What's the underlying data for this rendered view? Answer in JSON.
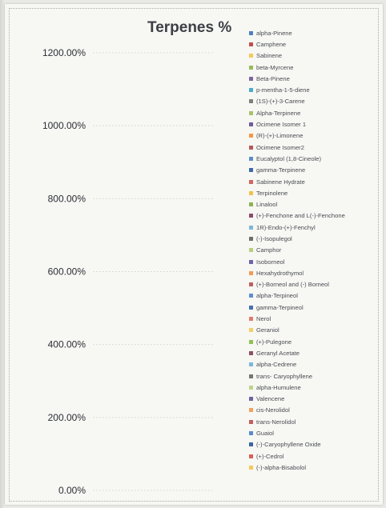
{
  "chart_data": {
    "type": "bar",
    "title": "Terpenes %",
    "xlabel": "",
    "ylabel": "",
    "ylim": [
      0,
      12
    ],
    "yticks": [
      {
        "value": 0,
        "label": "0.00%"
      },
      {
        "value": 2,
        "label": "200.00%"
      },
      {
        "value": 4,
        "label": "400.00%"
      },
      {
        "value": 6,
        "label": "600.00%"
      },
      {
        "value": 8,
        "label": "800.00%"
      },
      {
        "value": 10,
        "label": "1000.00%"
      },
      {
        "value": 12,
        "label": "1200.00%"
      }
    ],
    "legend_position": "right",
    "series": [
      {
        "name": "alpha-Pinene",
        "color": "#4f81bd",
        "values": []
      },
      {
        "name": "Camphene",
        "color": "#c0504d",
        "values": []
      },
      {
        "name": "Sabinene",
        "color": "#f7c85a",
        "values": []
      },
      {
        "name": "beta-Myrcene",
        "color": "#9bbb59",
        "values": []
      },
      {
        "name": "Beta-Pinene",
        "color": "#8064a2",
        "values": []
      },
      {
        "name": "p-mentha-1-5-diene",
        "color": "#4bacc6",
        "values": []
      },
      {
        "name": "(1S)-(+)-3-Carene",
        "color": "#7f7f7f",
        "values": []
      },
      {
        "name": "Alpha-Terpinene",
        "color": "#a5c46b",
        "values": []
      },
      {
        "name": "Ocimene Isomer 1",
        "color": "#6f5c99",
        "values": []
      },
      {
        "name": "(R)-(+)-Limonene",
        "color": "#f79646",
        "values": []
      },
      {
        "name": "Ocimene Isomer2",
        "color": "#b65a57",
        "values": []
      },
      {
        "name": "Eucalyptol (1,8-Cineole)",
        "color": "#5b8ec7",
        "values": []
      },
      {
        "name": "gamma-Terpinene",
        "color": "#3f6aa6",
        "values": []
      },
      {
        "name": "Sabinene Hydrate",
        "color": "#d0675f",
        "values": []
      },
      {
        "name": "Terpinolene",
        "color": "#f2c14e",
        "values": []
      },
      {
        "name": "Linalool",
        "color": "#8db255",
        "values": []
      },
      {
        "name": "(+)-Fenchone and L(-)-Fenchone",
        "color": "#8a4d6e",
        "values": []
      },
      {
        "name": "1R)-Endo-(+)-Fenchyl",
        "color": "#7fb7d8",
        "values": []
      },
      {
        "name": "(-)-Isopulegol",
        "color": "#6e6e6e",
        "values": []
      },
      {
        "name": "Camphor",
        "color": "#b8cf7c",
        "values": []
      },
      {
        "name": "Isoborneol",
        "color": "#7262a8",
        "values": []
      },
      {
        "name": "Hexahydrothymol",
        "color": "#f29b54",
        "values": []
      },
      {
        "name": "(+)-Borneol and (-) Borneol",
        "color": "#c06060",
        "values": []
      },
      {
        "name": "alpha-Terpineol",
        "color": "#5d8fd0",
        "values": []
      },
      {
        "name": "gamma-Terpineol",
        "color": "#4670b0",
        "values": []
      },
      {
        "name": "Nerol",
        "color": "#e07a6e",
        "values": []
      },
      {
        "name": "Geraniol",
        "color": "#f5cf66",
        "values": []
      },
      {
        "name": "(+)-Pulegone",
        "color": "#93bf58",
        "values": []
      },
      {
        "name": "Geranyl Acetate",
        "color": "#8f4f68",
        "values": []
      },
      {
        "name": "alpha-Cedrene",
        "color": "#79b9da",
        "values": []
      },
      {
        "name": "trans- Caryophyllene",
        "color": "#757575",
        "values": []
      },
      {
        "name": "alpha-Humulene",
        "color": "#bdd48a",
        "values": []
      },
      {
        "name": "Valencene",
        "color": "#6d63a3",
        "values": []
      },
      {
        "name": "cis-Nerolidol",
        "color": "#f3a062",
        "values": []
      },
      {
        "name": "trans-Nerolidol",
        "color": "#c2605b",
        "values": []
      },
      {
        "name": "Guaiol",
        "color": "#5a8ccc",
        "values": []
      },
      {
        "name": "(-)-Caryophyllene Oxide",
        "color": "#3f63a0",
        "values": []
      },
      {
        "name": "(+)-Cedrol",
        "color": "#d95f57",
        "values": []
      },
      {
        "name": "(-)-alpha-Bisabolol",
        "color": "#f4cb58",
        "values": []
      }
    ]
  }
}
